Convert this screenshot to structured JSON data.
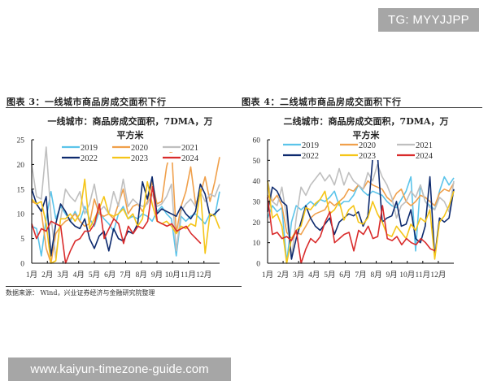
{
  "watermarks": {
    "top": "TG: MYYJJPP",
    "bottom": "www.kaiyun-timezone-guide.com"
  },
  "figures": [
    {
      "label": "图表 3：一线城市商品房成交面积下行",
      "chart_title_line1": "一线城市：商品房成交面积，7DMA，万",
      "chart_title_line2": "平方米"
    },
    {
      "label": "图表 4：二线城市商品房成交面积下行",
      "chart_title_line1": "二线城市：商品房成交面积，7DMA，万",
      "chart_title_line2": "平方米"
    }
  ],
  "source": "数据来源： Wind，兴业证券经济与金融研究院整理",
  "colors": {
    "2019": "#5bc4ea",
    "2020": "#f0a04b",
    "2021": "#bfbfbf",
    "2022": "#0d2a6e",
    "2023": "#f5c518",
    "2024": "#d92b2b"
  },
  "chart_data": [
    {
      "type": "line",
      "title": "一线城市：商品房成交面积，7DMA，万平方米",
      "xlabel": "",
      "ylabel": "",
      "ylim": [
        0,
        25
      ],
      "yticks": [
        0,
        5,
        10,
        15,
        20,
        25
      ],
      "categories": [
        "1月",
        "2月",
        "3月",
        "4月",
        "5月",
        "6月",
        "7月",
        "8月",
        "9月",
        "10月",
        "11月",
        "12月"
      ],
      "legend": [
        "2019",
        "2020",
        "2021",
        "2022",
        "2023",
        "2024"
      ],
      "legend_position": "top-inside",
      "grid": false,
      "series": [
        {
          "name": "2019",
          "values": [
            7.5,
            7,
            1.5,
            9,
            14.5,
            9,
            11.5,
            10,
            8.5,
            10.5,
            8.5,
            11.5,
            9,
            7.5,
            10.5,
            9,
            8,
            6.5,
            10,
            11.5,
            9,
            9.5,
            9,
            10,
            9.5,
            8.5,
            10.5,
            11.5,
            10,
            9,
            1.5,
            9.5,
            8.5,
            9.5,
            10,
            9,
            8,
            10,
            9.5,
            14.5
          ]
        },
        {
          "name": "2020",
          "values": [
            12.5,
            12,
            10.5,
            3,
            0,
            6,
            7.5,
            8.5,
            9,
            10,
            8.5,
            7.5,
            8,
            13,
            10,
            9.5,
            10,
            9,
            12,
            15,
            10,
            11.5,
            12,
            10.5,
            12.5,
            16.5,
            12,
            12.5,
            19.5,
            23.5,
            6,
            11.5,
            14.5,
            19.5,
            12,
            14,
            17.5,
            12.5,
            16.5,
            21.5
          ]
        },
        {
          "name": "2021",
          "values": [
            20,
            13.5,
            13,
            23.5,
            9.5,
            1,
            9,
            15,
            13.5,
            12.5,
            14.5,
            10,
            12,
            16,
            10.5,
            11.5,
            10,
            14.5,
            11.5,
            17,
            11.5,
            13,
            12,
            11.5,
            12,
            14,
            11.5,
            12,
            13.5,
            16,
            2.5,
            10.5,
            12,
            13,
            11.5,
            14.5,
            12.5,
            14,
            13.5,
            16
          ]
        },
        {
          "name": "2022",
          "values": [
            15,
            12,
            10.5,
            13.5,
            1.5,
            8,
            12,
            10.5,
            8.5,
            7.5,
            7,
            9,
            5,
            3,
            5.5,
            6.5,
            2.5,
            7,
            5,
            4.5,
            6.5,
            6,
            8,
            16.5,
            13,
            17.5,
            10,
            11,
            10.5,
            10,
            9.5,
            11.5,
            10,
            9,
            10.5,
            16,
            14,
            9.5,
            10,
            11
          ]
        },
        {
          "name": "2023",
          "values": [
            13,
            12,
            12.5,
            8,
            0,
            0.5,
            9,
            9,
            10,
            8.5,
            10,
            17,
            7,
            9,
            11,
            13.5,
            10,
            9.5,
            10,
            11,
            9,
            10,
            7.5,
            9,
            16.5,
            12,
            8.5,
            8,
            8.5,
            7.5,
            6,
            7.5,
            7,
            8,
            7.5,
            15,
            2,
            10,
            9.5,
            7
          ]
        },
        {
          "name": "2024",
          "values": [
            8,
            5,
            7,
            6.5,
            8.5,
            8,
            7.5,
            0,
            2.5,
            4.5,
            5,
            6.5,
            6.5,
            8,
            12,
            5,
            7,
            9,
            8,
            4,
            7.5,
            6,
            7.5,
            7,
            8.5,
            15.5,
            8.5,
            8,
            7.5,
            8,
            6.5,
            7,
            7.5,
            6,
            5,
            4
          ]
        }
      ]
    },
    {
      "type": "line",
      "title": "二线城市：商品房成交面积，7DMA，万平方米",
      "xlabel": "",
      "ylabel": "",
      "ylim": [
        0,
        60
      ],
      "yticks": [
        0,
        10,
        20,
        30,
        40,
        50,
        60
      ],
      "categories": [
        "1月",
        "2月",
        "3月",
        "4月",
        "5月",
        "6月",
        "7月",
        "8月",
        "9月",
        "10月",
        "11月",
        "12月"
      ],
      "legend": [
        "2019",
        "2020",
        "2021",
        "2022",
        "2023",
        "2024"
      ],
      "legend_position": "top-inside",
      "grid": false,
      "series": [
        {
          "name": "2019",
          "values": [
            22,
            28,
            25,
            27,
            0.5,
            20,
            28,
            26,
            28,
            30,
            28,
            31,
            30,
            32,
            35,
            28,
            30,
            30,
            33,
            38,
            35,
            33,
            35,
            34,
            33,
            30,
            28,
            27,
            31,
            35,
            42,
            6,
            38,
            30,
            28,
            26,
            35,
            42,
            38,
            41.5
          ]
        },
        {
          "name": "2020",
          "values": [
            33,
            30,
            33,
            28,
            15,
            12,
            15,
            14,
            18,
            22,
            24,
            25,
            26,
            30,
            28,
            30,
            32,
            36,
            35,
            38,
            36,
            40,
            38,
            37,
            36,
            32,
            30,
            34,
            36,
            30,
            28,
            30,
            33,
            32,
            30,
            28,
            34,
            36,
            35,
            39
          ]
        },
        {
          "name": "2021",
          "values": [
            40,
            30,
            28,
            37,
            22,
            2,
            22,
            37,
            33,
            38,
            41,
            44,
            40,
            43,
            38,
            46,
            38,
            44,
            40,
            38,
            36,
            44,
            40,
            48,
            42,
            38,
            32,
            22,
            28,
            30,
            35,
            32,
            38,
            30,
            27,
            26,
            32,
            30,
            25,
            40
          ]
        },
        {
          "name": "2022",
          "values": [
            25,
            37,
            35,
            30,
            28,
            2,
            12,
            20,
            28,
            22,
            18,
            16,
            19,
            22,
            14,
            20,
            22,
            24,
            23,
            25,
            18,
            23,
            51,
            53,
            20,
            22,
            23,
            30,
            18,
            19,
            26,
            12,
            10,
            18,
            42,
            3,
            22,
            20,
            22,
            36
          ]
        },
        {
          "name": "2023",
          "values": [
            40,
            22,
            24,
            18,
            0,
            12,
            16,
            18,
            27,
            26,
            29,
            31,
            35,
            24,
            26,
            30,
            21,
            26,
            28,
            20,
            19,
            22,
            30,
            24,
            20,
            14,
            13,
            18,
            15,
            12,
            19,
            16,
            22,
            20,
            26,
            2,
            20,
            23,
            28,
            35
          ]
        },
        {
          "name": "2024",
          "values": [
            32,
            14,
            15,
            12,
            13,
            11,
            16,
            0,
            7,
            12,
            10,
            13,
            20,
            25,
            10,
            12,
            14,
            15,
            6,
            16,
            14,
            18,
            12,
            13,
            28,
            12,
            11,
            13,
            9,
            12,
            10,
            9,
            12,
            10,
            7,
            6
          ]
        }
      ]
    }
  ]
}
